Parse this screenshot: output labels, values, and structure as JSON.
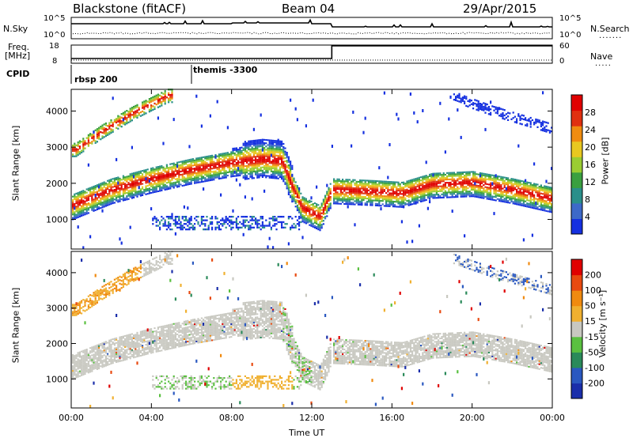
{
  "header": {
    "station": "Blackstone (fitACF)",
    "beam": "Beam 04",
    "date": "29/Apr/2015"
  },
  "noise_panel": {
    "left_label": "N.Sky",
    "right_label": "N.Search",
    "left_ticks": [
      "10^5",
      "10^0"
    ],
    "right_ticks": [
      "10^5",
      "10^0"
    ]
  },
  "freq_panel": {
    "left_label_line1": "Freq.",
    "left_label_line2": "[MHz]",
    "right_label": "Nave",
    "left_ticks": [
      "18",
      "8"
    ],
    "right_ticks": [
      "60",
      "0"
    ]
  },
  "cpid_panel": {
    "label": "CPID",
    "segments": [
      {
        "label": "rbsp 200",
        "start_hour": 0
      },
      {
        "label": "themis -3300",
        "start_hour": 6
      }
    ]
  },
  "chart_data": [
    {
      "type": "heatmap",
      "name": "power",
      "ylabel": "Slant Range [km]",
      "ylim": [
        180,
        4600
      ],
      "yticks": [
        "1000",
        "2000",
        "3000",
        "4000"
      ],
      "xlabel": "Time UT",
      "xlim": [
        0,
        24
      ],
      "xticks": [
        "00:00",
        "04:00",
        "08:00",
        "12:00",
        "16:00",
        "20:00",
        "00:00"
      ],
      "colorbar": {
        "label": "Power [dB]",
        "ticks": [
          "4",
          "8",
          "12",
          "16",
          "20",
          "24",
          "28"
        ],
        "colors": [
          "#1530e0",
          "#3d69c8",
          "#2a8f8a",
          "#3aa040",
          "#9acd32",
          "#e8c820",
          "#f08c10",
          "#e03010",
          "#e00000"
        ]
      },
      "main_band": [
        {
          "t": 0.0,
          "range": 1350
        },
        {
          "t": 2.0,
          "range": 1800
        },
        {
          "t": 4.0,
          "range": 2100
        },
        {
          "t": 6.0,
          "range": 2350
        },
        {
          "t": 8.0,
          "range": 2550
        },
        {
          "t": 9.5,
          "range": 2650
        },
        {
          "t": 10.5,
          "range": 2600
        },
        {
          "t": 11.0,
          "range": 1900
        },
        {
          "t": 11.5,
          "range": 1300
        },
        {
          "t": 12.4,
          "range": 1050
        },
        {
          "t": 13.0,
          "range": 1800
        },
        {
          "t": 15.0,
          "range": 1750
        },
        {
          "t": 16.5,
          "range": 1700
        },
        {
          "t": 18.0,
          "range": 1950
        },
        {
          "t": 20.0,
          "range": 2000
        },
        {
          "t": 22.0,
          "range": 1800
        },
        {
          "t": 24.0,
          "range": 1550
        }
      ],
      "upper_band": [
        {
          "t": 0.2,
          "range": 2900
        },
        {
          "t": 1.5,
          "range": 3400
        },
        {
          "t": 3.0,
          "range": 3900
        },
        {
          "t": 4.8,
          "range": 4400
        }
      ],
      "late_band": [
        {
          "t": 19.0,
          "range": 4400
        },
        {
          "t": 21.0,
          "range": 4000
        },
        {
          "t": 24.0,
          "range": 3500
        }
      ]
    },
    {
      "type": "heatmap",
      "name": "velocity",
      "ylabel": "Slant Range [km]",
      "ylim": [
        180,
        4600
      ],
      "yticks": [
        "1000",
        "2000",
        "3000",
        "4000"
      ],
      "xlabel": "Time UT",
      "xlim": [
        0,
        24
      ],
      "xticks": [
        "00:00",
        "04:00",
        "08:00",
        "12:00",
        "16:00",
        "20:00",
        "00:00"
      ],
      "colorbar": {
        "label": "Velocity [m s⁻¹]",
        "ticks": [
          "200",
          "100",
          "50",
          "15",
          "-15",
          "-50",
          "-100",
          "-200"
        ],
        "colors": [
          "#1a2eaa",
          "#2a58c0",
          "#2a8a5a",
          "#5ac040",
          "#c8c8c0",
          "#f0b030",
          "#f08a10",
          "#e84a10",
          "#e00000"
        ]
      }
    }
  ]
}
